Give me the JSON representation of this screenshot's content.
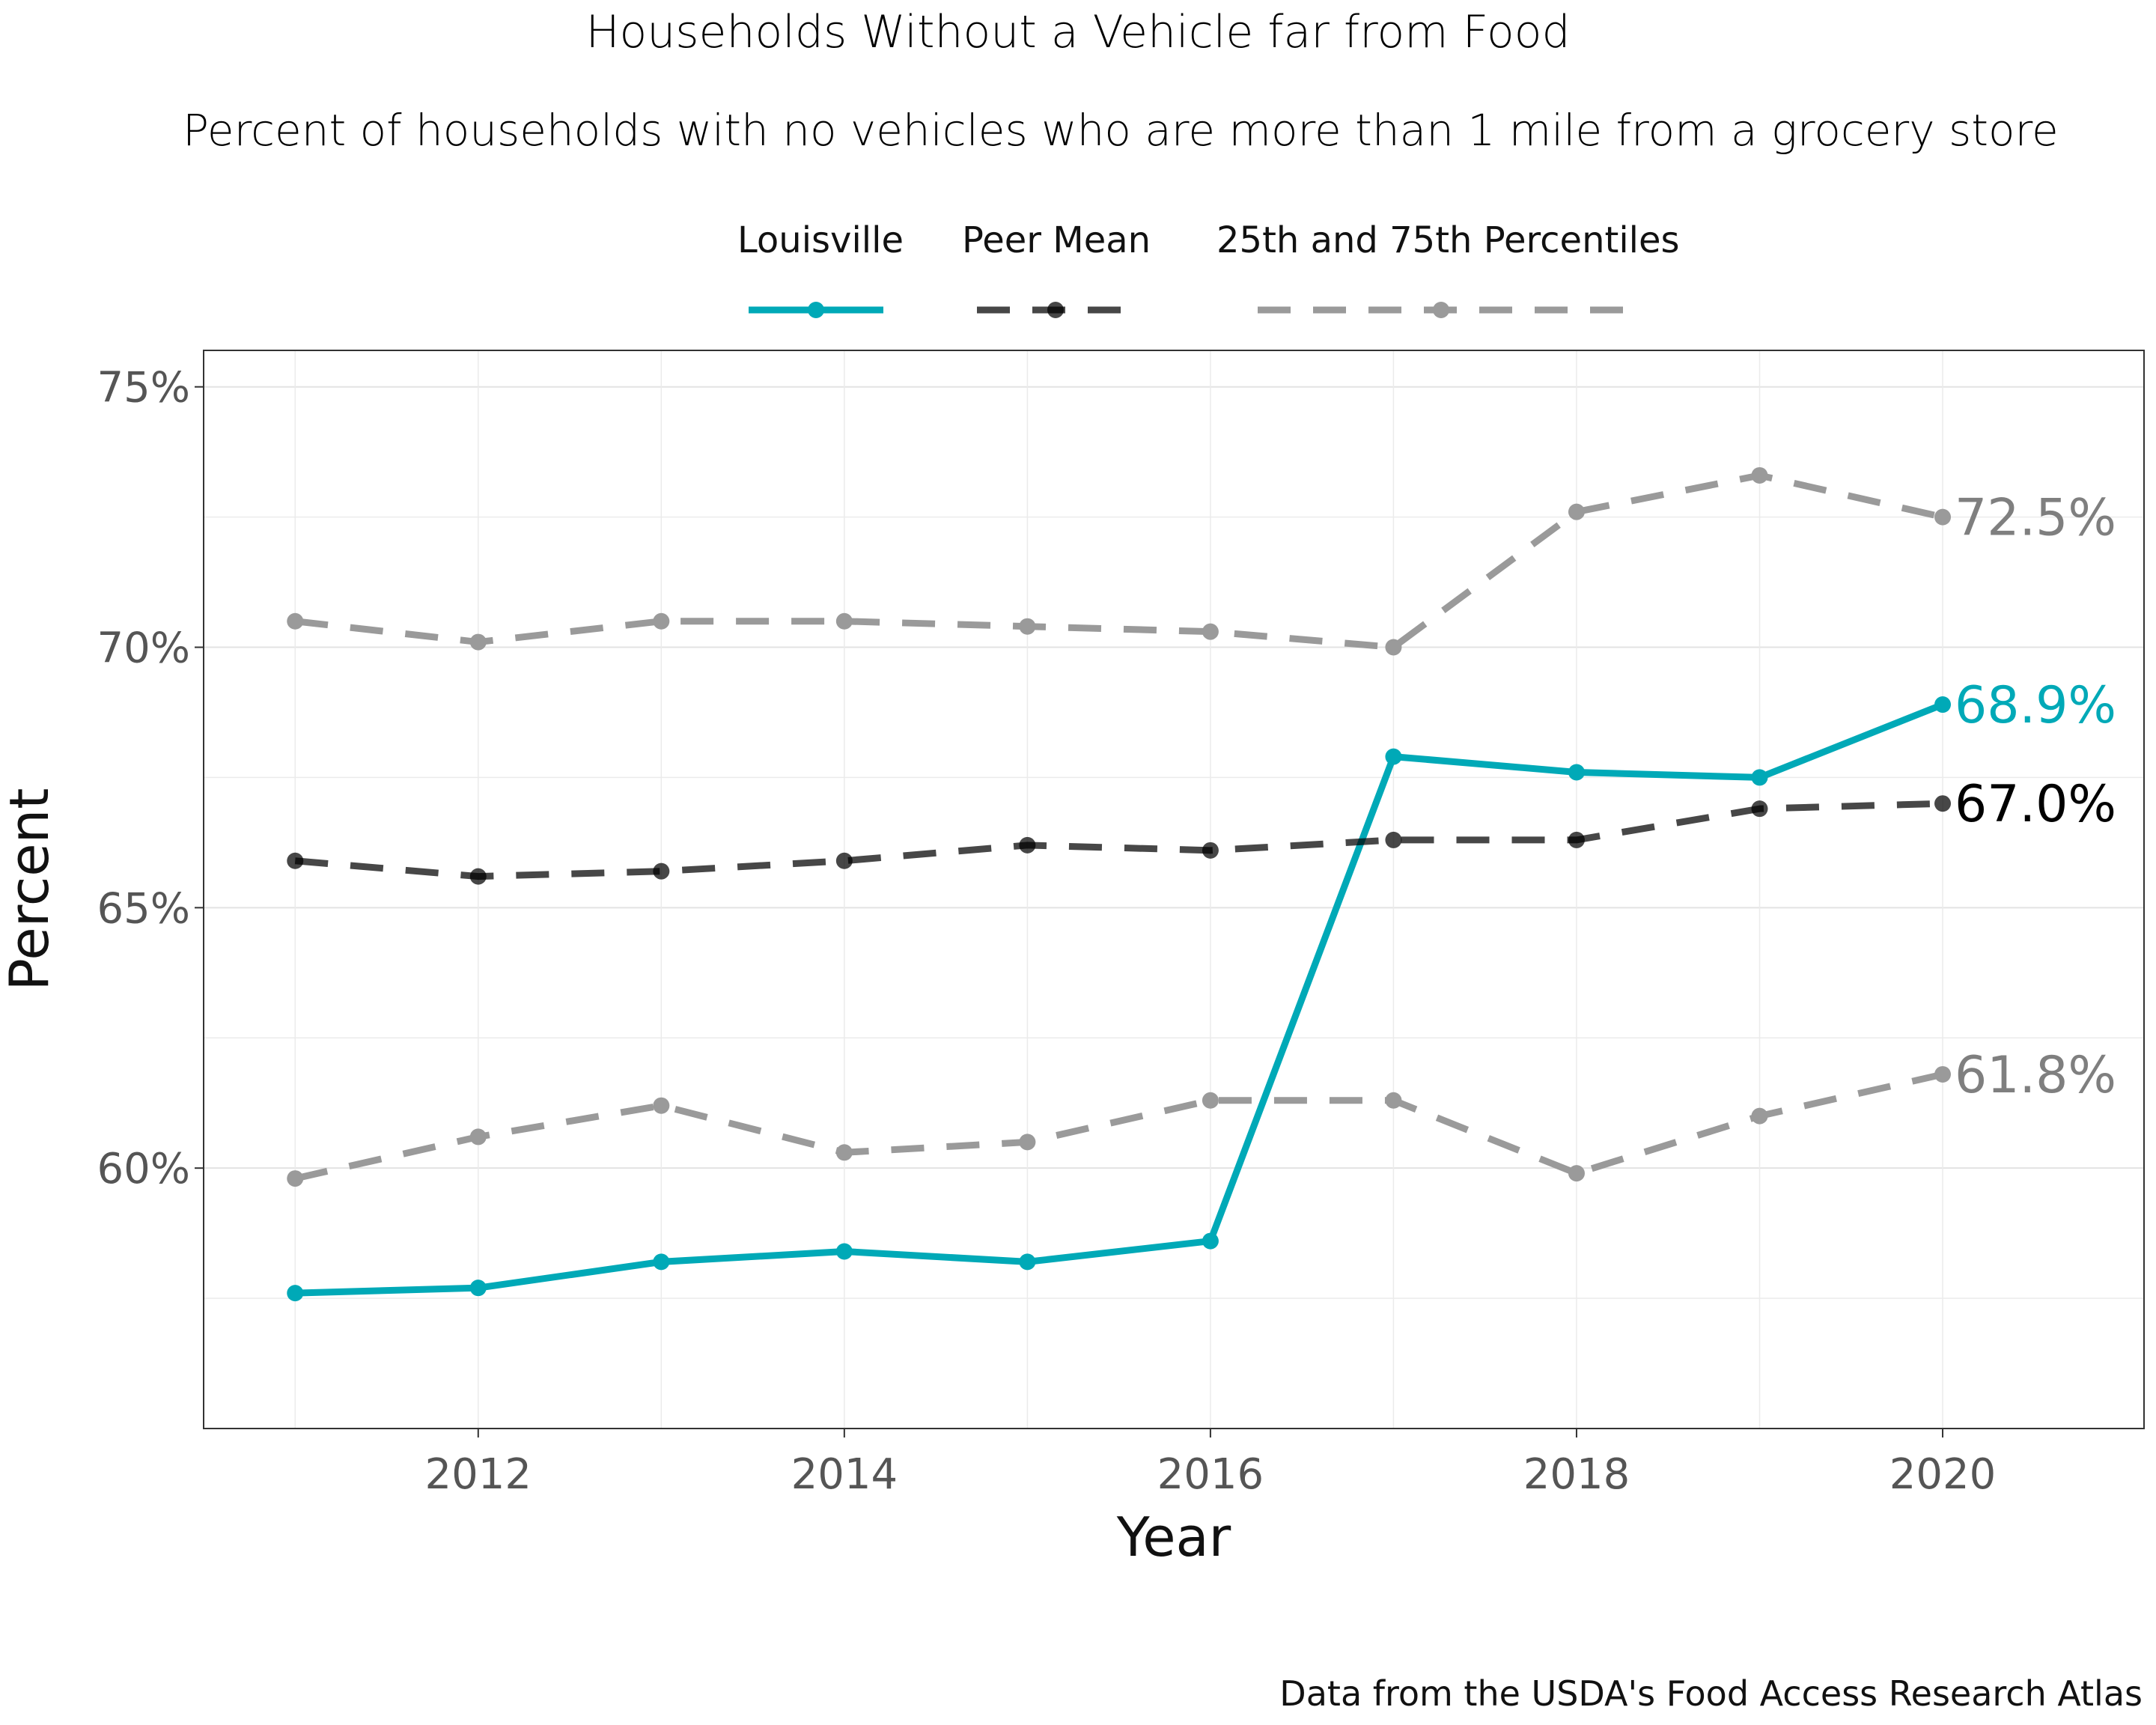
{
  "chart_data": {
    "type": "line",
    "title": "Households Without a Vehicle far from Food",
    "subtitle": "Percent of households with no vehicles who are more than 1 mile from a grocery store",
    "xlabel": "Year",
    "ylabel": "Percent",
    "caption": "Data from the USDA's Food Access Research Atlas",
    "x": [
      2011,
      2012,
      2013,
      2014,
      2015,
      2016,
      2017,
      2018,
      2019,
      2020
    ],
    "xlim": [
      2010.5,
      2021.1
    ],
    "ylim": [
      55.0,
      75.7
    ],
    "x_ticks": [
      2012,
      2014,
      2016,
      2018,
      2020
    ],
    "x_tick_labels": [
      "2012",
      "2014",
      "2016",
      "2018",
      "2020"
    ],
    "y_ticks": [
      60,
      65,
      70,
      75
    ],
    "y_tick_labels": [
      "60%",
      "65%",
      "70%",
      "75%"
    ],
    "grid": true,
    "legend_position": "top",
    "legend": [
      "Louisville",
      "Peer Mean",
      "25th and 75th Percentiles"
    ],
    "series": [
      {
        "name": "Louisville",
        "color": "#00a9b7",
        "dash": "solid",
        "values": [
          57.6,
          57.7,
          58.2,
          58.4,
          58.2,
          58.6,
          67.9,
          67.6,
          67.5,
          68.9
        ],
        "end_label": "68.9%"
      },
      {
        "name": "Peer Mean",
        "color": "#000000",
        "dash": "dashed",
        "values": [
          65.9,
          65.6,
          65.7,
          65.9,
          66.2,
          66.1,
          66.3,
          66.3,
          66.9,
          67.0
        ],
        "end_label": "67.0%"
      },
      {
        "name": "75th Percentile",
        "color": "#9a9a9a",
        "dash": "dashed",
        "values": [
          70.5,
          70.1,
          70.5,
          70.5,
          70.4,
          70.3,
          70.0,
          72.6,
          73.3,
          72.5
        ],
        "end_label": "72.5%"
      },
      {
        "name": "25th Percentile",
        "color": "#9a9a9a",
        "dash": "dashed",
        "values": [
          59.8,
          60.6,
          61.2,
          60.3,
          60.5,
          61.3,
          61.3,
          59.9,
          61.0,
          61.8
        ],
        "end_label": "61.8%"
      }
    ]
  }
}
